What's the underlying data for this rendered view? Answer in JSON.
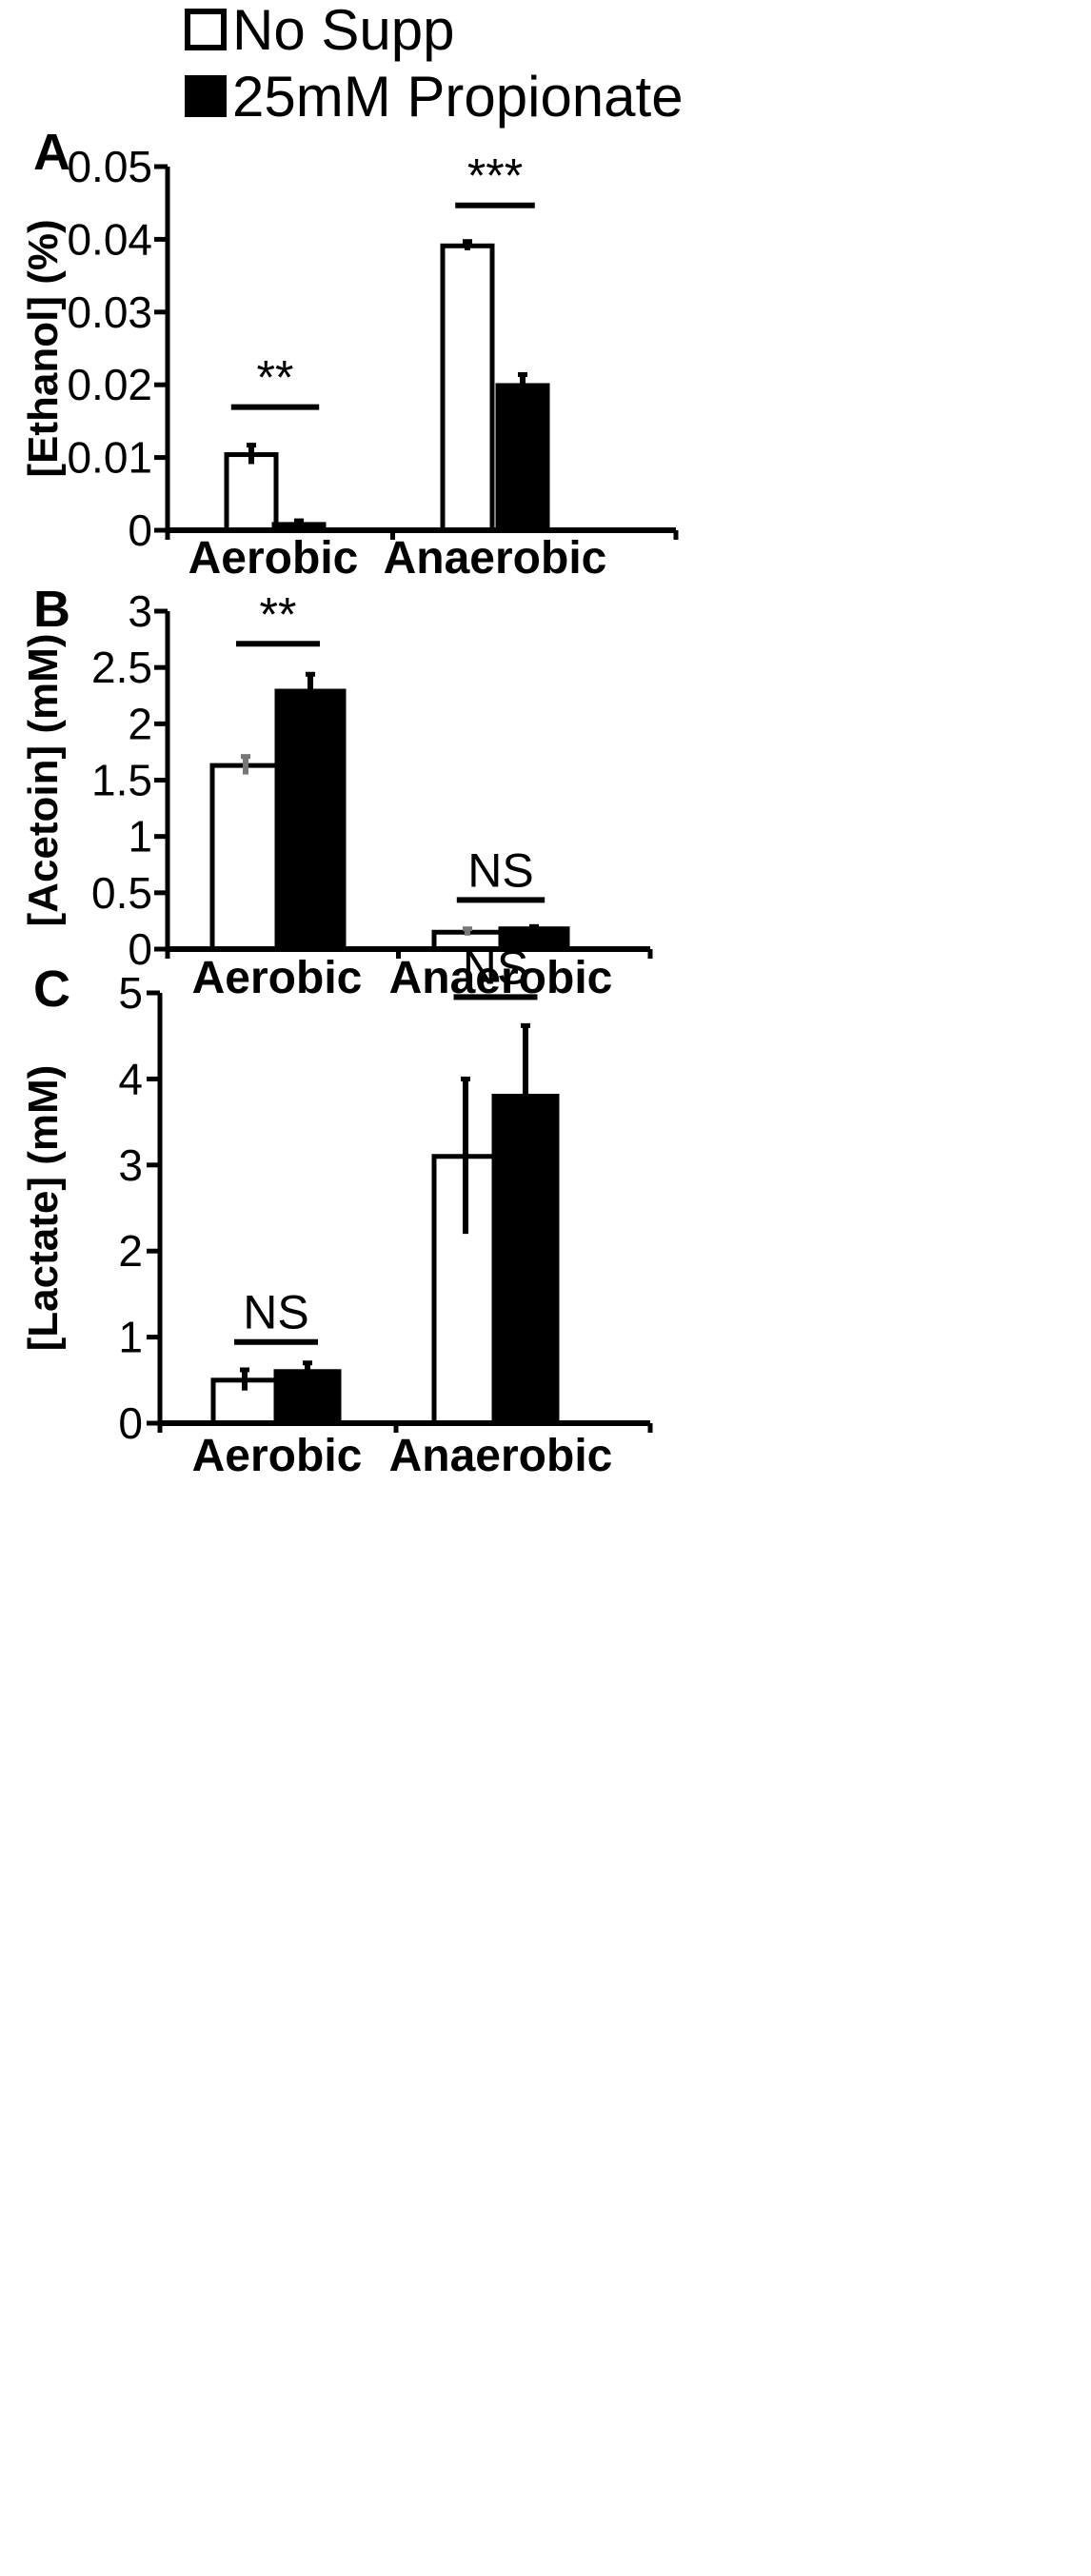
{
  "legend": [
    {
      "label": "No Supp",
      "color": "#ffffff"
    },
    {
      "label": "25mM Propionate",
      "color": "#000000"
    }
  ],
  "chart_data": [
    {
      "type": "bar",
      "panel": "A",
      "ylabel": "[Ethanol] (%)",
      "categories": [
        "Aerobic",
        "Anaerobic"
      ],
      "ylim": [
        0,
        0.05
      ],
      "yticks": [
        0,
        0.01,
        0.02,
        0.03,
        0.04,
        0.05
      ],
      "ytick_labels": [
        "0",
        "0.01",
        "0.02",
        "0.03",
        "0.04",
        "0.05"
      ],
      "series": [
        {
          "name": "No Supp",
          "values": [
            0.0104,
            0.0391
          ],
          "errors": [
            0.0013,
            0.0006
          ]
        },
        {
          "name": "25mM Propionate",
          "values": [
            0.0008,
            0.0199
          ],
          "errors": [
            0.0005,
            0.0015
          ]
        }
      ],
      "significance": [
        "**",
        "***"
      ]
    },
    {
      "type": "bar",
      "panel": "B",
      "ylabel": "[Acetoin] (mM)",
      "categories": [
        "Aerobic",
        "Anaerobic"
      ],
      "ylim": [
        0,
        3
      ],
      "yticks": [
        0,
        0.5,
        1,
        1.5,
        2,
        2.5,
        3
      ],
      "ytick_labels": [
        "0",
        "0.5",
        "1",
        "1.5",
        "2",
        "2.5",
        "3"
      ],
      "series": [
        {
          "name": "No Supp",
          "values": [
            1.63,
            0.15
          ],
          "errors": [
            0.08,
            0.03
          ]
        },
        {
          "name": "25mM Propionate",
          "values": [
            2.29,
            0.18
          ],
          "errors": [
            0.15,
            0.02
          ]
        }
      ],
      "significance": [
        "**",
        "NS"
      ]
    },
    {
      "type": "bar",
      "panel": "C",
      "ylabel": "[Lactate] (mM)",
      "categories": [
        "Aerobic",
        "Anaerobic"
      ],
      "ylim": [
        0,
        5
      ],
      "yticks": [
        0,
        1,
        2,
        3,
        4,
        5
      ],
      "ytick_labels": [
        "0",
        "1",
        "2",
        "3",
        "4",
        "5"
      ],
      "series": [
        {
          "name": "No Supp",
          "values": [
            0.5,
            3.1
          ],
          "errors": [
            0.12,
            0.9
          ]
        },
        {
          "name": "25mM Propionate",
          "values": [
            0.6,
            3.8
          ],
          "errors": [
            0.1,
            0.82
          ]
        }
      ],
      "significance": [
        "NS",
        "NS"
      ]
    }
  ]
}
